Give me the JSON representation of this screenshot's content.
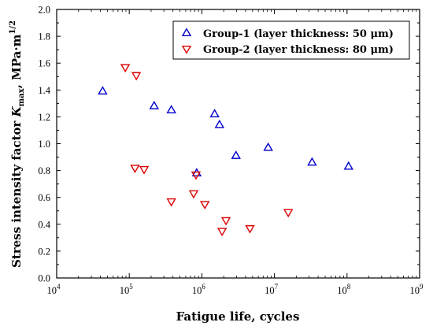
{
  "chart_data": {
    "type": "scatter",
    "xscale": "log",
    "xlim": [
      10000,
      1000000000
    ],
    "ylim": [
      0.0,
      2.0
    ],
    "grid": false,
    "legend_position": "top-right",
    "xlabel": "Fatigue life, cycles",
    "ylabel": "Stress intensity factor K_max, MPa·m^1/2",
    "ylabel_parts": {
      "prefix": "Stress intensity factor ",
      "K": "K",
      "sub": "max",
      "unit": ", MPa·m",
      "sup": "1/2"
    },
    "x_tick_labels": [
      {
        "base": "10",
        "exp": "4"
      },
      {
        "base": "10",
        "exp": "5"
      },
      {
        "base": "10",
        "exp": "6"
      },
      {
        "base": "10",
        "exp": "7"
      },
      {
        "base": "10",
        "exp": "8"
      },
      {
        "base": "10",
        "exp": "9"
      }
    ],
    "y_tick_labels": [
      "0.0",
      "0.2",
      "0.4",
      "0.6",
      "0.8",
      "1.0",
      "1.2",
      "1.4",
      "1.6",
      "1.8",
      "2.0"
    ],
    "series": [
      {
        "name": "Group-1 (layer thickness: 50 μm)",
        "color": "#0000cc",
        "marker": "triangle-up",
        "points": [
          [
            43000,
            1.39
          ],
          [
            220000,
            1.28
          ],
          [
            380000,
            1.25
          ],
          [
            850000,
            0.78
          ],
          [
            1500000,
            1.22
          ],
          [
            1750000,
            1.14
          ],
          [
            2950000,
            0.91
          ],
          [
            8200000,
            0.97
          ],
          [
            33000000,
            0.86
          ],
          [
            105000000,
            0.83
          ]
        ]
      },
      {
        "name": "Group-2 (layer thickness: 80 μm)",
        "color": "#dd0000",
        "marker": "triangle-down",
        "points": [
          [
            88000,
            1.57
          ],
          [
            125000,
            1.51
          ],
          [
            120000,
            0.82
          ],
          [
            160000,
            0.81
          ],
          [
            380000,
            0.57
          ],
          [
            770000,
            0.63
          ],
          [
            830000,
            0.77
          ],
          [
            1100000,
            0.55
          ],
          [
            1900000,
            0.35
          ],
          [
            2150000,
            0.43
          ],
          [
            4600000,
            0.37
          ],
          [
            15500000,
            0.49
          ]
        ]
      }
    ]
  }
}
